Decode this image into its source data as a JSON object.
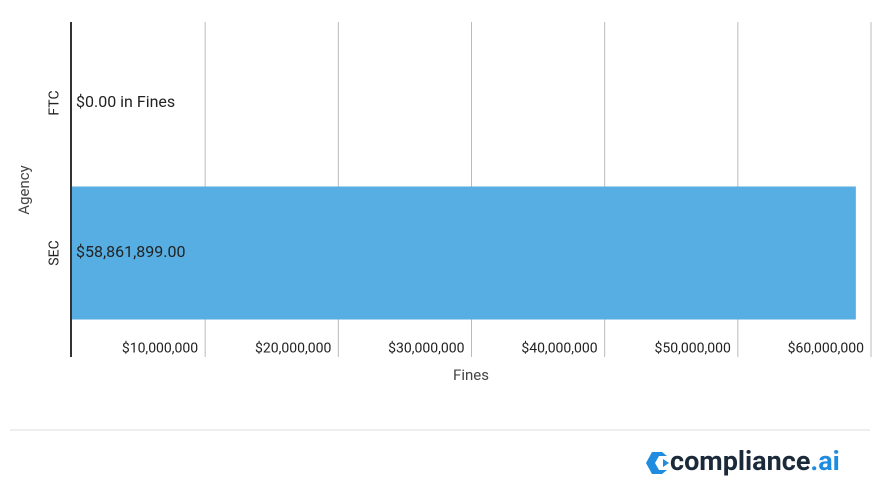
{
  "chart_data": {
    "type": "barh",
    "categories": [
      "FTC",
      "SEC"
    ],
    "values": [
      0,
      58861899
    ],
    "value_labels": [
      "$0.00 in Fines",
      "$58,861,899.00"
    ],
    "color": "#56aee2",
    "xlabel": "Fines",
    "ylabel": "Agency",
    "xlim": [
      0,
      60000000
    ],
    "xticks": [
      {
        "value": 10000000,
        "label": "$10,000,000"
      },
      {
        "value": 20000000,
        "label": "$20,000,000"
      },
      {
        "value": 30000000,
        "label": "$30,000,000"
      },
      {
        "value": 40000000,
        "label": "$40,000,000"
      },
      {
        "value": 50000000,
        "label": "$50,000,000"
      },
      {
        "value": 60000000,
        "label": "$60,000,000"
      }
    ],
    "grid": true
  },
  "footer": {
    "brand": "compliance",
    "brand_suffix": ".ai"
  }
}
